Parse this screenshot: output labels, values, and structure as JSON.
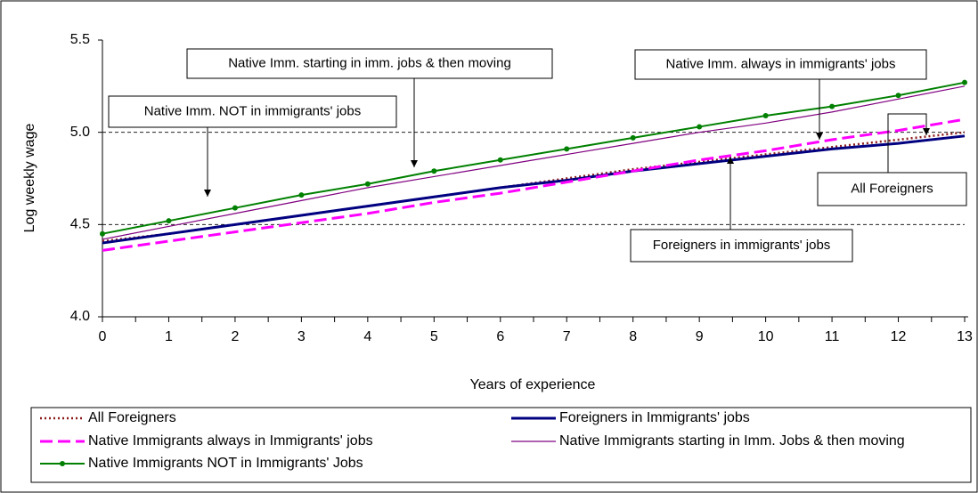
{
  "chart_data": {
    "type": "line",
    "x_label": "Years of experience",
    "y_label": "Log weekly wage",
    "x": [
      0,
      1,
      2,
      3,
      4,
      5,
      6,
      7,
      8,
      9,
      10,
      11,
      12,
      13
    ],
    "xlim": [
      0,
      13
    ],
    "xticks": [
      0,
      1,
      2,
      3,
      4,
      5,
      6,
      7,
      8,
      9,
      10,
      11,
      12,
      13
    ],
    "ylim": [
      4.0,
      5.5
    ],
    "yticks": [
      {
        "value": 4.0,
        "label": "4.0"
      },
      {
        "value": 4.5,
        "label": "4.5"
      },
      {
        "value": 5.0,
        "label": "5.0"
      },
      {
        "value": 5.5,
        "label": "5.5"
      }
    ],
    "grid": true,
    "series": [
      {
        "name": "All Foreigners",
        "color": "#8b1a1a",
        "style": "dotted",
        "values": [
          4.41,
          4.45,
          4.5,
          4.55,
          4.6,
          4.65,
          4.7,
          4.75,
          4.8,
          4.84,
          4.88,
          4.92,
          4.96,
          5.0
        ]
      },
      {
        "name": "Foreigners in Immigrants' jobs",
        "color": "#000080",
        "style": "thick",
        "values": [
          4.4,
          4.45,
          4.5,
          4.55,
          4.6,
          4.65,
          4.7,
          4.74,
          4.79,
          4.83,
          4.87,
          4.91,
          4.94,
          4.98
        ]
      },
      {
        "name": "Native Immigrants always in Immigrants' jobs",
        "color": "#ff00ff",
        "style": "dashed",
        "values": [
          4.36,
          4.41,
          4.46,
          4.51,
          4.56,
          4.62,
          4.67,
          4.73,
          4.79,
          4.85,
          4.9,
          4.96,
          5.01,
          5.07
        ]
      },
      {
        "name": "Native Immigrants starting in Imm. Jobs & then moving",
        "color": "#800080",
        "style": "thin",
        "values": [
          4.42,
          4.49,
          4.56,
          4.63,
          4.7,
          4.76,
          4.82,
          4.88,
          4.94,
          5.0,
          5.05,
          5.11,
          5.18,
          5.25
        ]
      },
      {
        "name": "Native Immigrants NOT in Immigrants' Jobs",
        "color": "#008000",
        "style": "markers",
        "values": [
          4.45,
          4.52,
          4.59,
          4.66,
          4.72,
          4.79,
          4.85,
          4.91,
          4.97,
          5.03,
          5.09,
          5.14,
          5.2,
          5.27
        ]
      }
    ],
    "annotations": [
      "Native Imm. starting in imm. jobs & then moving",
      "Native Imm. always in immigrants' jobs",
      "Native Imm. NOT in immigrants' jobs",
      "All Foreigners",
      "Foreigners in immigrants' jobs"
    ]
  }
}
